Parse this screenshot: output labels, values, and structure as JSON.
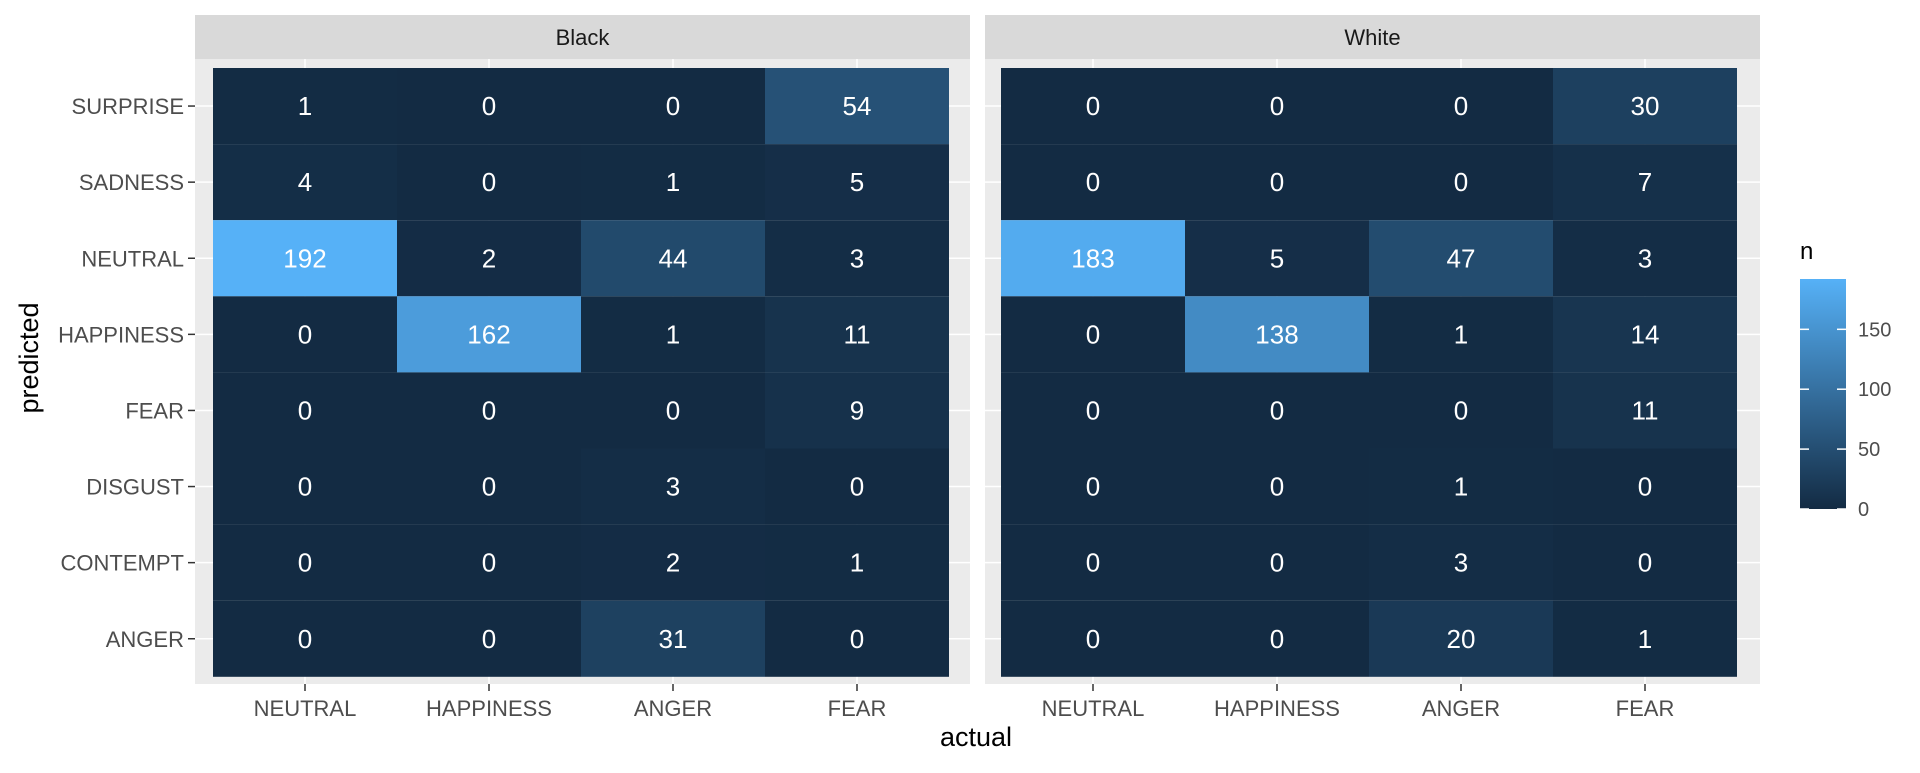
{
  "chart_data": {
    "type": "heatmap",
    "xlabel": "actual",
    "ylabel": "predicted",
    "x_categories": [
      "NEUTRAL",
      "HAPPINESS",
      "ANGER",
      "FEAR"
    ],
    "y_categories": [
      "SURPRISE",
      "SADNESS",
      "NEUTRAL",
      "HAPPINESS",
      "FEAR",
      "DISGUST",
      "CONTEMPT",
      "ANGER"
    ],
    "facets": [
      {
        "label": "Black",
        "values": [
          [
            1,
            0,
            0,
            54
          ],
          [
            4,
            0,
            1,
            5
          ],
          [
            192,
            2,
            44,
            3
          ],
          [
            0,
            162,
            1,
            11
          ],
          [
            0,
            0,
            0,
            9
          ],
          [
            0,
            0,
            3,
            0
          ],
          [
            0,
            0,
            2,
            1
          ],
          [
            0,
            0,
            31,
            0
          ]
        ]
      },
      {
        "label": "White",
        "values": [
          [
            0,
            0,
            0,
            30
          ],
          [
            0,
            0,
            0,
            7
          ],
          [
            183,
            5,
            47,
            3
          ],
          [
            0,
            138,
            1,
            14
          ],
          [
            0,
            0,
            0,
            11
          ],
          [
            0,
            0,
            1,
            0
          ],
          [
            0,
            0,
            3,
            0
          ],
          [
            0,
            0,
            20,
            1
          ]
        ]
      }
    ],
    "legend": {
      "title": "n",
      "ticks": [
        0,
        50,
        100,
        150
      ],
      "range": [
        0,
        192
      ],
      "placement": "right"
    },
    "colors": {
      "low": "#132B43",
      "high": "#56B1F7",
      "panel_bg": "#EBEBEB",
      "strip_bg": "#D9D9D9",
      "grid": "#FFFFFF",
      "cell_text": "#FFFFFF",
      "axis_text": "#4D4D4D",
      "title_text": "#000000"
    },
    "grid": true
  }
}
